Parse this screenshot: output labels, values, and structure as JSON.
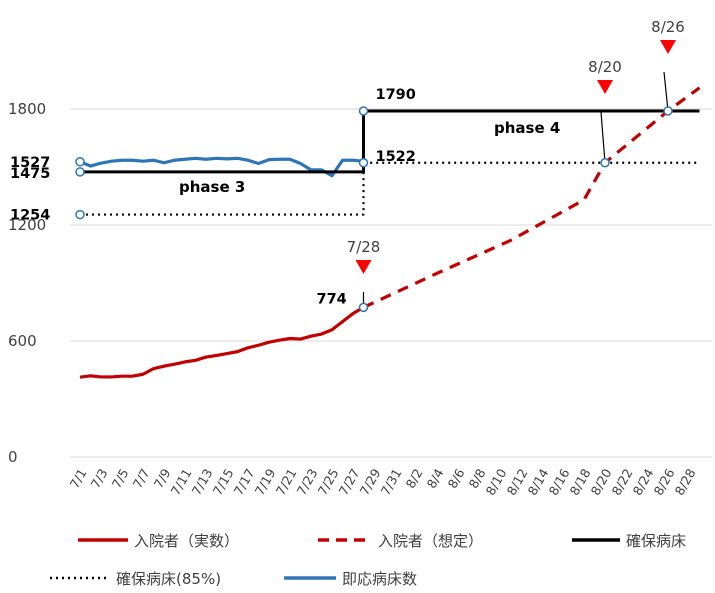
{
  "chart_data": {
    "type": "line",
    "ylim": [
      0,
      2050
    ],
    "y_ticks": [
      0,
      600,
      1200,
      1800
    ],
    "x_tick_labels": [
      "7/1",
      "7/3",
      "7/5",
      "7/7",
      "7/9",
      "7/11",
      "7/13",
      "7/15",
      "7/17",
      "7/19",
      "7/21",
      "7/23",
      "7/25",
      "7/27",
      "7/29",
      "7/31",
      "8/2",
      "8/4",
      "8/6",
      "8/8",
      "8/10",
      "8/12",
      "8/14",
      "8/16",
      "8/18",
      "8/20",
      "8/22",
      "8/24",
      "8/26",
      "8/28"
    ],
    "grid": true,
    "legend_position": "bottom",
    "series": [
      {
        "name": "入院者（実数）",
        "style": "solid",
        "color": "#c00000",
        "x": [
          "7/1",
          "7/2",
          "7/3",
          "7/4",
          "7/5",
          "7/6",
          "7/7",
          "7/8",
          "7/9",
          "7/10",
          "7/11",
          "7/12",
          "7/13",
          "7/14",
          "7/15",
          "7/16",
          "7/17",
          "7/18",
          "7/19",
          "7/20",
          "7/21",
          "7/22",
          "7/23",
          "7/24",
          "7/25",
          "7/26",
          "7/27",
          "7/28"
        ],
        "values": [
          413,
          420,
          414,
          414,
          418,
          418,
          428,
          457,
          470,
          480,
          492,
          500,
          517,
          525,
          535,
          545,
          565,
          578,
          594,
          604,
          613,
          610,
          625,
          636,
          658,
          700,
          742,
          774
        ]
      },
      {
        "name": "入院者（想定）",
        "style": "dashed",
        "color": "#c00000",
        "x": [
          "7/28",
          "8/4",
          "8/11",
          "8/18",
          "8/20",
          "8/26",
          "8/29"
        ],
        "values": [
          774,
          950,
          1120,
          1330,
          1522,
          1790,
          1910
        ]
      },
      {
        "name": "確保病床",
        "style": "solid",
        "color": "#000000",
        "x": [
          "7/1",
          "7/28",
          "7/28",
          "8/29"
        ],
        "values": [
          1475,
          1475,
          1790,
          1790
        ]
      },
      {
        "name": "確保病床(85%)",
        "style": "dotted",
        "color": "#000000",
        "x": [
          "7/1",
          "7/28",
          "7/28",
          "8/29"
        ],
        "values": [
          1254,
          1254,
          1522,
          1522
        ]
      },
      {
        "name": "即応病床数",
        "style": "solid",
        "color": "#2e75b6",
        "x": [
          "7/1",
          "7/2",
          "7/3",
          "7/4",
          "7/5",
          "7/6",
          "7/7",
          "7/8",
          "7/9",
          "7/10",
          "7/11",
          "7/12",
          "7/13",
          "7/14",
          "7/15",
          "7/16",
          "7/17",
          "7/18",
          "7/19",
          "7/20",
          "7/21",
          "7/22",
          "7/23",
          "7/24",
          "7/25",
          "7/26",
          "7/27",
          "7/28"
        ],
        "values": [
          1527,
          1505,
          1520,
          1530,
          1535,
          1535,
          1530,
          1535,
          1522,
          1535,
          1540,
          1545,
          1540,
          1545,
          1542,
          1545,
          1535,
          1518,
          1538,
          1540,
          1540,
          1518,
          1485,
          1485,
          1455,
          1535,
          1535,
          1530
        ]
      }
    ],
    "callouts": [
      {
        "text": "1527",
        "x": "7/1",
        "y": 1527,
        "series": "即応病床数"
      },
      {
        "text": "1475",
        "x": "7/1",
        "y": 1475,
        "series": "確保病床"
      },
      {
        "text": "1254",
        "x": "7/1",
        "y": 1254,
        "series": "確保病床(85%)"
      },
      {
        "text": "1790",
        "x": "7/28",
        "y": 1790,
        "series": "確保病床"
      },
      {
        "text": "1522",
        "x": "7/28",
        "y": 1522,
        "series": "確保病床(85%)"
      },
      {
        "text": "774",
        "x": "7/28",
        "y": 774,
        "series": "入院者（実数）"
      }
    ],
    "phase_labels": [
      {
        "text": "phase 3",
        "x": "7/15",
        "y": 1475
      },
      {
        "text": "phase 4",
        "x": "8/14",
        "y": 1790
      }
    ],
    "date_markers": [
      {
        "text": "7/28",
        "x": "7/28",
        "y": 774,
        "marker_color": "#ff0000"
      },
      {
        "text": "8/20",
        "x": "8/20",
        "y": 1522,
        "marker_color": "#ff0000"
      },
      {
        "text": "8/26",
        "x": "8/26",
        "y": 1790,
        "marker_color": "#ff0000"
      }
    ]
  }
}
